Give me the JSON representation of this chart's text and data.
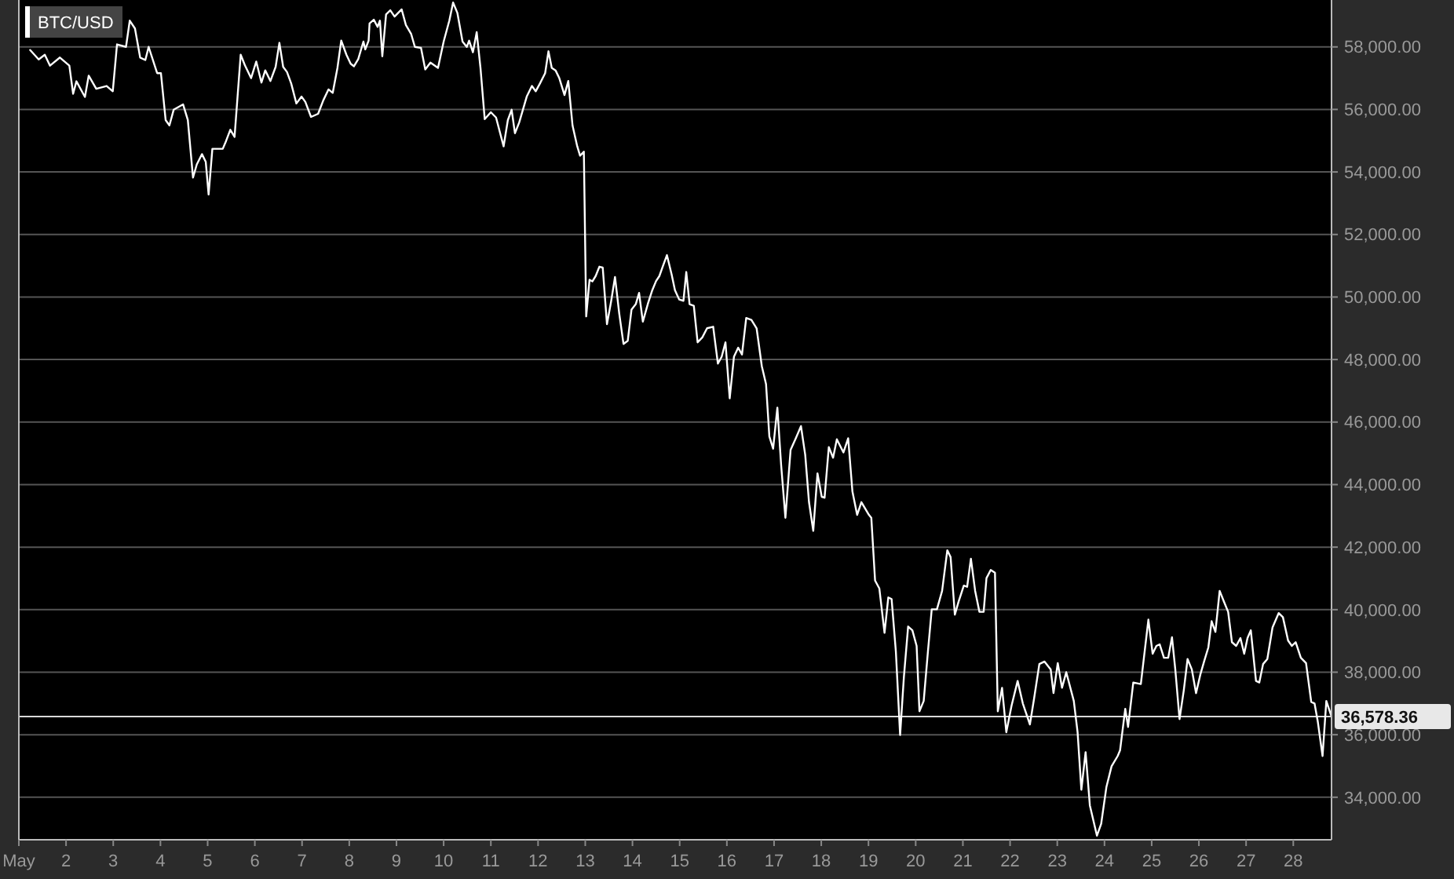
{
  "chart_data": {
    "type": "line",
    "title": "BTC/USD",
    "x": [
      1.24,
      1.42,
      1.55,
      1.66,
      1.87,
      2.07,
      2.15,
      2.22,
      2.4,
      2.48,
      2.64,
      2.86,
      2.99,
      3.08,
      3.27,
      3.35,
      3.46,
      3.57,
      3.68,
      3.75,
      3.93,
      4.01,
      4.11,
      4.19,
      4.28,
      4.48,
      4.58,
      4.69,
      4.77,
      4.88,
      4.96,
      5.02,
      5.1,
      5.32,
      5.39,
      5.48,
      5.57,
      5.7,
      5.79,
      5.92,
      6.03,
      6.14,
      6.22,
      6.33,
      6.44,
      6.52,
      6.6,
      6.68,
      6.77,
      6.88,
      6.99,
      7.07,
      7.19,
      7.34,
      7.45,
      7.56,
      7.65,
      7.75,
      7.83,
      7.94,
      8.03,
      8.1,
      8.19,
      8.3,
      8.34,
      8.41,
      8.43,
      8.52,
      8.6,
      8.65,
      8.7,
      8.78,
      8.87,
      8.96,
      9.11,
      9.2,
      9.31,
      9.39,
      9.52,
      9.61,
      9.72,
      9.88,
      10.0,
      10.12,
      10.2,
      10.29,
      10.4,
      10.49,
      10.54,
      10.62,
      10.7,
      10.78,
      10.87,
      11.0,
      11.11,
      11.27,
      11.36,
      11.44,
      11.51,
      11.6,
      11.76,
      11.87,
      11.95,
      12.04,
      12.15,
      12.22,
      12.29,
      12.37,
      12.45,
      12.56,
      12.64,
      12.73,
      12.83,
      12.89,
      12.97,
      13.02,
      13.09,
      13.15,
      13.22,
      13.3,
      13.37,
      13.46,
      13.55,
      13.63,
      13.72,
      13.81,
      13.9,
      13.98,
      14.07,
      14.14,
      14.22,
      14.33,
      14.42,
      14.5,
      14.57,
      14.64,
      14.73,
      14.83,
      14.9,
      14.99,
      15.08,
      15.14,
      15.21,
      15.3,
      15.38,
      15.48,
      15.58,
      15.71,
      15.81,
      15.89,
      15.97,
      16.06,
      16.15,
      16.24,
      16.32,
      16.41,
      16.52,
      16.63,
      16.74,
      16.83,
      16.9,
      16.98,
      17.07,
      17.15,
      17.24,
      17.35,
      17.46,
      17.57,
      17.66,
      17.74,
      17.83,
      17.92,
      18.01,
      18.07,
      18.16,
      18.25,
      18.33,
      18.47,
      18.57,
      18.66,
      18.76,
      18.85,
      19.01,
      19.06,
      19.14,
      19.23,
      19.34,
      19.42,
      19.49,
      19.58,
      19.67,
      19.75,
      19.84,
      19.93,
      20.02,
      20.08,
      20.17,
      20.26,
      20.34,
      20.45,
      20.56,
      20.67,
      20.74,
      20.83,
      20.91,
      21.02,
      21.09,
      21.17,
      21.26,
      21.35,
      21.44,
      21.5,
      21.59,
      21.68,
      21.74,
      21.83,
      21.92,
      22.03,
      22.16,
      22.27,
      22.42,
      22.51,
      22.62,
      22.73,
      22.86,
      22.92,
      23.01,
      23.1,
      23.19,
      23.35,
      23.43,
      23.51,
      23.6,
      23.69,
      23.84,
      23.93,
      24.04,
      24.15,
      24.28,
      24.33,
      24.44,
      24.5,
      24.61,
      24.77,
      24.93,
      25.02,
      25.1,
      25.17,
      25.26,
      25.35,
      25.43,
      25.5,
      25.59,
      25.68,
      25.76,
      25.85,
      25.94,
      26.03,
      26.11,
      26.2,
      26.27,
      26.35,
      26.44,
      26.53,
      26.62,
      26.7,
      26.79,
      26.88,
      26.96,
      27.03,
      27.1,
      27.21,
      27.28,
      27.36,
      27.45,
      27.56,
      27.69,
      27.78,
      27.89,
      27.97,
      28.05,
      28.16,
      28.27,
      28.38,
      28.45,
      28.52,
      28.62,
      28.7,
      28.81
    ],
    "series": [
      {
        "color": "#ffffff",
        "values": [
          57900,
          57600,
          57750,
          57400,
          57660,
          57400,
          56500,
          56900,
          56400,
          57080,
          56660,
          56750,
          56580,
          58080,
          58000,
          58840,
          58590,
          57660,
          57580,
          58000,
          57160,
          57160,
          55660,
          55490,
          55990,
          56160,
          55660,
          53820,
          54240,
          54570,
          54320,
          53280,
          54740,
          54740,
          54990,
          55350,
          55120,
          57750,
          57410,
          57000,
          57530,
          56860,
          57250,
          56910,
          57360,
          58130,
          57360,
          57200,
          56830,
          56190,
          56410,
          56240,
          55760,
          55860,
          56290,
          56640,
          56530,
          57330,
          58200,
          57750,
          57460,
          57380,
          57610,
          58170,
          57920,
          58200,
          58750,
          58870,
          58640,
          58840,
          57700,
          59040,
          59170,
          58970,
          59200,
          58700,
          58420,
          58000,
          57970,
          57280,
          57500,
          57330,
          58170,
          58840,
          59420,
          59090,
          58170,
          58000,
          58200,
          57830,
          58470,
          57330,
          55690,
          55910,
          55740,
          54820,
          55660,
          55990,
          55240,
          55580,
          56410,
          56750,
          56580,
          56830,
          57160,
          57860,
          57330,
          57250,
          57000,
          56460,
          56910,
          55490,
          54820,
          54520,
          54650,
          49380,
          50550,
          50500,
          50670,
          50970,
          50940,
          49130,
          49880,
          50640,
          49470,
          48500,
          48600,
          49600,
          49770,
          50130,
          49210,
          49800,
          50220,
          50510,
          50670,
          50970,
          51340,
          50720,
          50220,
          49920,
          49880,
          50800,
          49770,
          49720,
          48550,
          48710,
          49000,
          49050,
          47870,
          48090,
          48550,
          46760,
          48090,
          48380,
          48160,
          49330,
          49270,
          49000,
          47790,
          47210,
          45540,
          45150,
          46460,
          44620,
          42940,
          45110,
          45480,
          45870,
          44950,
          43440,
          42520,
          44360,
          43610,
          43580,
          45200,
          44860,
          45450,
          45030,
          45480,
          43780,
          43030,
          43440,
          43030,
          42940,
          40930,
          40680,
          39260,
          40390,
          40340,
          38670,
          35990,
          37840,
          39460,
          39340,
          38840,
          36750,
          37080,
          38670,
          40010,
          40010,
          40600,
          41900,
          41680,
          39840,
          40260,
          40770,
          40730,
          41630,
          40600,
          39930,
          39930,
          41010,
          41270,
          41180,
          36750,
          37500,
          36080,
          36920,
          37720,
          37000,
          36330,
          37170,
          38260,
          38340,
          38090,
          37330,
          38290,
          37500,
          38000,
          37080,
          36080,
          34240,
          35440,
          33740,
          32770,
          33150,
          34320,
          34990,
          35320,
          35500,
          36830,
          36250,
          37670,
          37620,
          39680,
          38590,
          38840,
          38890,
          38460,
          38460,
          39120,
          38090,
          36500,
          37420,
          38420,
          38090,
          37330,
          37920,
          38340,
          38790,
          39630,
          39290,
          40600,
          40260,
          39930,
          38960,
          38840,
          39090,
          38590,
          39090,
          39340,
          37720,
          37670,
          38260,
          38420,
          39430,
          39890,
          39760,
          39010,
          38840,
          38960,
          38460,
          38290,
          37050,
          37000,
          36410,
          35320,
          37080,
          36580
        ]
      }
    ],
    "xlim": [
      1,
      28.81
    ],
    "xticks": [
      {
        "value": 1,
        "label": "May"
      },
      2,
      3,
      4,
      5,
      6,
      7,
      8,
      9,
      10,
      11,
      12,
      13,
      14,
      15,
      16,
      17,
      18,
      19,
      20,
      21,
      22,
      23,
      24,
      25,
      26,
      27,
      28
    ],
    "ylim": [
      32640,
      59500
    ],
    "yticks": [
      {
        "value": 34000,
        "label": "34,000.00"
      },
      {
        "value": 36000,
        "label": "36,000.00"
      },
      {
        "value": 38000,
        "label": "38,000.00"
      },
      {
        "value": 40000,
        "label": "40,000.00"
      },
      {
        "value": 42000,
        "label": "42,000.00"
      },
      {
        "value": 44000,
        "label": "44,000.00"
      },
      {
        "value": 46000,
        "label": "46,000.00"
      },
      {
        "value": 48000,
        "label": "48,000.00"
      },
      {
        "value": 50000,
        "label": "50,000.00"
      },
      {
        "value": 52000,
        "label": "52,000.00"
      },
      {
        "value": 54000,
        "label": "54,000.00"
      },
      {
        "value": 56000,
        "label": "56,000.00"
      },
      {
        "value": 58000,
        "label": "58,000.00"
      }
    ],
    "grid": "y",
    "ref_lines": [
      {
        "axis": "y",
        "value": 36578.36,
        "label": "36,578.36",
        "color": "#ffffff"
      }
    ]
  }
}
